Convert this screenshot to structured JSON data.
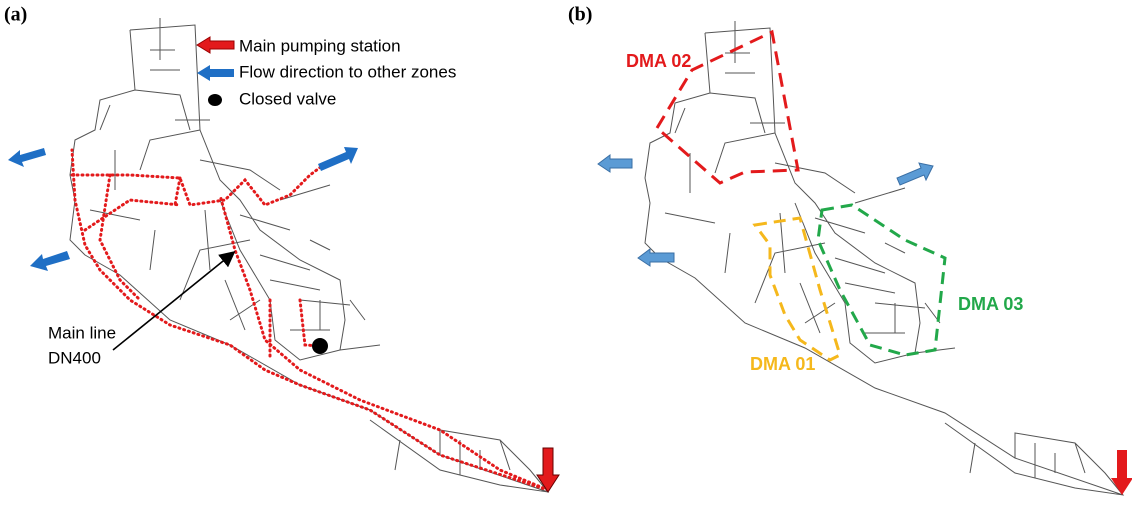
{
  "panels": [
    {
      "label": "(a)",
      "legend": [
        "Main pumping station",
        "Flow direction to other zones",
        "Closed valve"
      ],
      "annotation": [
        "Main line",
        "DN400"
      ]
    },
    {
      "label": "(b)",
      "zones": [
        "DMA 02",
        "DMA 03",
        "DMA 01"
      ]
    }
  ]
}
